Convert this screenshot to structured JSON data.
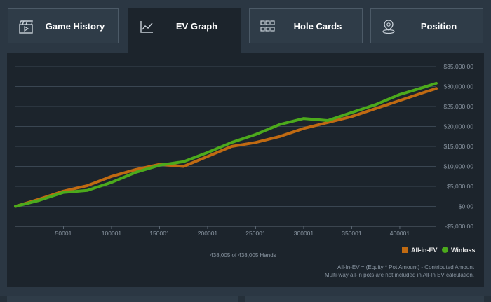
{
  "tabs": [
    {
      "label": "Game History",
      "icon": "clapperboard-icon",
      "active": false
    },
    {
      "label": "EV Graph",
      "icon": "line-chart-icon",
      "active": true
    },
    {
      "label": "Hole Cards",
      "icon": "grid-icon",
      "active": false
    },
    {
      "label": "Position",
      "icon": "map-pin-icon",
      "active": false
    }
  ],
  "colors": {
    "background": "#2b3743",
    "panel": "#1c242c",
    "allin_ev": "#c06a12",
    "winloss": "#4caa1c",
    "grid": "#3a4652",
    "tick_text": "#8a96a2"
  },
  "hands_summary": "438,005 of 438,005 Hands",
  "notes": [
    "All-In-EV = (Equity * Pot Amount) - Contributed Amount",
    "Multi-way all-in pots are not included in All-In EV calculation."
  ],
  "chart_data": {
    "type": "line",
    "title": "",
    "xlabel": "",
    "ylabel": "",
    "xlim": [
      1,
      438005
    ],
    "ylim": [
      -5000,
      35000
    ],
    "x_ticks": [
      50001,
      100001,
      150001,
      200001,
      250001,
      300001,
      350001,
      400001
    ],
    "x_tick_labels": [
      "50001",
      "100001",
      "150001",
      "200001",
      "250001",
      "300001",
      "350001",
      "400001"
    ],
    "y_ticks": [
      -5000,
      0,
      5000,
      10000,
      15000,
      20000,
      25000,
      30000,
      35000
    ],
    "y_tick_labels": [
      "-$5,000.00",
      "$0.00",
      "$5,000.00",
      "$10,000.00",
      "$15,000.00",
      "$20,000.00",
      "$25,000.00",
      "$30,000.00",
      "$35,000.00"
    ],
    "grid": true,
    "legend_position": "bottom-right",
    "x": [
      1,
      25000,
      50001,
      75000,
      100001,
      125000,
      150001,
      175000,
      200001,
      225000,
      250001,
      275000,
      300001,
      325000,
      350001,
      375000,
      400001,
      425000,
      438005
    ],
    "series": [
      {
        "name": "All-in-EV",
        "color": "#c06a12",
        "values": [
          0,
          1800,
          3800,
          5200,
          7500,
          9200,
          10500,
          10000,
          12500,
          15000,
          16000,
          17500,
          19500,
          21000,
          22500,
          24500,
          26500,
          28500,
          29500
        ]
      },
      {
        "name": "Winloss",
        "color": "#4caa1c",
        "values": [
          0,
          1500,
          3500,
          4000,
          6000,
          8500,
          10300,
          11200,
          13500,
          16000,
          18000,
          20500,
          22000,
          21500,
          23500,
          25500,
          28000,
          29800,
          30800
        ]
      }
    ]
  }
}
